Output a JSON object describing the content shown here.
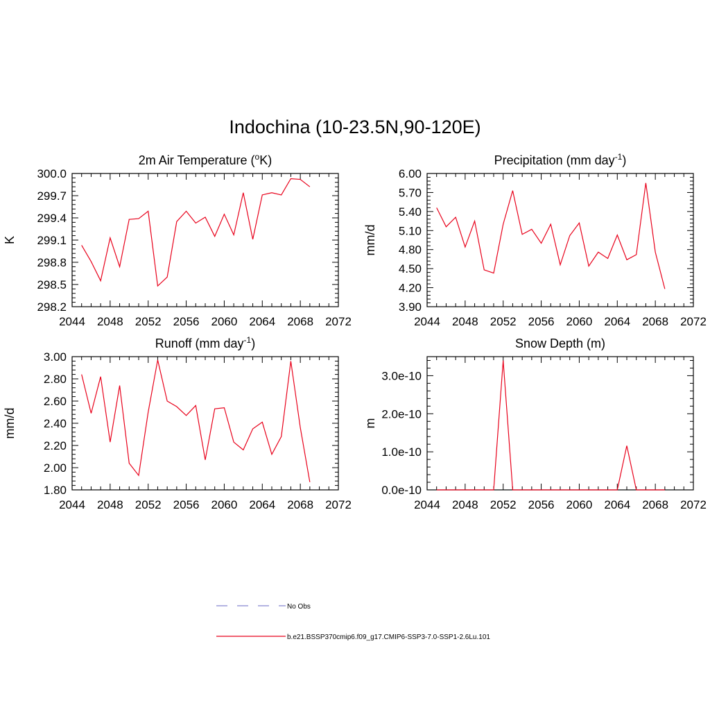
{
  "title": "Indochina (10-23.5N,90-120E)",
  "legend": {
    "obs_label": "No Obs",
    "obs_color": "#9a9ad8",
    "model_label": "b.e21.BSSP370cmip6.f09_g17.CMIP6-SSP3-7.0-SSP1-2.6Lu.101",
    "model_color": "#e8001a"
  },
  "chart_data": [
    {
      "type": "line",
      "title_main": "2m Air Temperature (",
      "title_sup": "o",
      "title_end": "K)",
      "ylabel": "K",
      "xlim": [
        2044,
        2072
      ],
      "ylim": [
        298.2,
        300.0
      ],
      "xticks": [
        "2044",
        "2048",
        "2052",
        "2056",
        "2060",
        "2064",
        "2068",
        "2072"
      ],
      "yticks": [
        "298.2",
        "298.5",
        "298.8",
        "299.1",
        "299.4",
        "299.7",
        "300.0"
      ],
      "x": [
        2045,
        2046,
        2047,
        2048,
        2049,
        2050,
        2051,
        2052,
        2053,
        2054,
        2055,
        2056,
        2057,
        2058,
        2059,
        2060,
        2061,
        2062,
        2063,
        2064,
        2065,
        2066,
        2067,
        2068,
        2069
      ],
      "series": [
        {
          "values": [
            299.03,
            298.81,
            298.55,
            299.13,
            298.74,
            299.38,
            299.39,
            299.49,
            298.48,
            298.6,
            299.35,
            299.49,
            299.33,
            299.41,
            299.15,
            299.45,
            299.17,
            299.74,
            299.11,
            299.71,
            299.74,
            299.71,
            299.93,
            299.92,
            299.82
          ]
        }
      ]
    },
    {
      "type": "line",
      "title_main": "Precipitation (mm day",
      "title_sup": "-1",
      "title_end": ")",
      "ylabel": "mm/d",
      "xlim": [
        2044,
        2072
      ],
      "ylim": [
        3.9,
        6.0
      ],
      "xticks": [
        "2044",
        "2048",
        "2052",
        "2056",
        "2060",
        "2064",
        "2068",
        "2072"
      ],
      "yticks": [
        "3.90",
        "4.20",
        "4.50",
        "4.80",
        "5.10",
        "5.40",
        "5.70",
        "6.00"
      ],
      "x": [
        2045,
        2046,
        2047,
        2048,
        2049,
        2050,
        2051,
        2052,
        2053,
        2054,
        2055,
        2056,
        2057,
        2058,
        2059,
        2060,
        2061,
        2062,
        2063,
        2064,
        2065,
        2066,
        2067,
        2068,
        2069
      ],
      "series": [
        {
          "values": [
            5.46,
            5.16,
            5.31,
            4.84,
            5.25,
            4.48,
            4.43,
            5.2,
            5.73,
            5.04,
            5.12,
            4.9,
            5.2,
            4.56,
            5.02,
            5.22,
            4.54,
            4.76,
            4.66,
            5.03,
            4.64,
            4.72,
            5.85,
            4.76,
            4.18
          ]
        }
      ]
    },
    {
      "type": "line",
      "title_main": "Runoff (mm day",
      "title_sup": "-1",
      "title_end": ")",
      "ylabel": "mm/d",
      "xlim": [
        2044,
        2072
      ],
      "ylim": [
        1.8,
        3.0
      ],
      "xticks": [
        "2044",
        "2048",
        "2052",
        "2056",
        "2060",
        "2064",
        "2068",
        "2072"
      ],
      "yticks": [
        "1.80",
        "2.00",
        "2.20",
        "2.40",
        "2.60",
        "2.80",
        "3.00"
      ],
      "x": [
        2045,
        2046,
        2047,
        2048,
        2049,
        2050,
        2051,
        2052,
        2053,
        2054,
        2055,
        2056,
        2057,
        2058,
        2059,
        2060,
        2061,
        2062,
        2063,
        2064,
        2065,
        2066,
        2067,
        2068,
        2069
      ],
      "series": [
        {
          "values": [
            2.84,
            2.49,
            2.82,
            2.23,
            2.74,
            2.04,
            1.93,
            2.5,
            2.97,
            2.6,
            2.55,
            2.47,
            2.56,
            2.07,
            2.53,
            2.54,
            2.23,
            2.16,
            2.35,
            2.41,
            2.12,
            2.28,
            2.96,
            2.36,
            1.87
          ]
        }
      ]
    },
    {
      "type": "line",
      "title_main": "Snow Depth (m)",
      "title_sup": "",
      "title_end": "",
      "ylabel": "m",
      "xlim": [
        2044,
        2072
      ],
      "ylim": [
        0,
        3.5e-10
      ],
      "ytick_values": [
        0,
        1e-10,
        2e-10,
        3e-10
      ],
      "xticks": [
        "2044",
        "2048",
        "2052",
        "2056",
        "2060",
        "2064",
        "2068",
        "2072"
      ],
      "yticks": [
        "0.0e-10",
        "1.0e-10",
        "2.0e-10",
        "3.0e-10"
      ],
      "x": [
        2045,
        2046,
        2047,
        2048,
        2049,
        2050,
        2051,
        2052,
        2053,
        2054,
        2055,
        2056,
        2057,
        2058,
        2059,
        2060,
        2061,
        2062,
        2063,
        2064,
        2065,
        2066,
        2067,
        2068,
        2069
      ],
      "series": [
        {
          "values": [
            0,
            0,
            0,
            0,
            0,
            0,
            0,
            3.4e-10,
            0,
            0,
            0,
            0,
            0,
            0,
            0,
            0,
            0,
            0,
            0,
            0,
            1.16e-10,
            0,
            0,
            0,
            0
          ]
        }
      ]
    }
  ]
}
